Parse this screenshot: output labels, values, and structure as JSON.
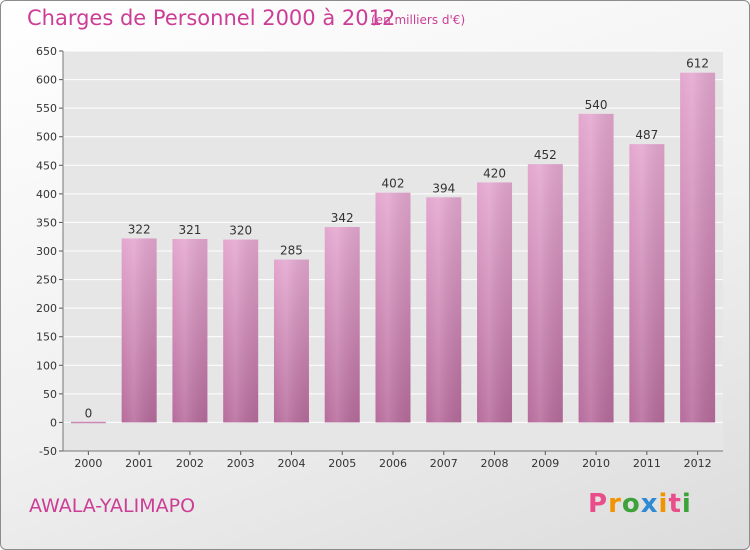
{
  "chart_data": {
    "type": "bar",
    "title": "Charges de Personnel 2000 à 2012",
    "subtitle": "(en milliers d'€)",
    "categories": [
      "2000",
      "2001",
      "2002",
      "2003",
      "2004",
      "2005",
      "2006",
      "2007",
      "2008",
      "2009",
      "2010",
      "2011",
      "2012"
    ],
    "values": [
      0,
      322,
      321,
      320,
      285,
      342,
      402,
      394,
      420,
      452,
      540,
      487,
      612
    ],
    "value_labels": [
      "0",
      "322",
      "321",
      "320",
      "285",
      "342",
      "402",
      "394",
      "420",
      "452",
      "540",
      "487",
      "612"
    ],
    "ylim": [
      -50,
      650
    ],
    "y_ticks": [
      -50,
      0,
      50,
      100,
      150,
      200,
      250,
      300,
      350,
      400,
      450,
      500,
      550,
      600,
      650
    ],
    "y_tick_labels": [
      "-50",
      "0",
      "50",
      "100",
      "150",
      "200",
      "250",
      "300",
      "350",
      "400",
      "450",
      "500",
      "550",
      "600",
      "650"
    ],
    "xlabel": "",
    "ylabel": "",
    "grid": true,
    "legend": "none",
    "colors": {
      "bar_top": "#e4a7cf",
      "bar_bottom": "#b76c9c",
      "text_accent": "#cc3e96",
      "grid": "#ffffff"
    }
  },
  "footer": {
    "commune": "AWALA-YALIMAPO",
    "brand": "Proxiti",
    "brand_colors": [
      "#e94e8a",
      "#f29400",
      "#3ea23a",
      "#2e8bd3",
      "#f29400",
      "#e94e8a",
      "#3ea23a"
    ]
  }
}
